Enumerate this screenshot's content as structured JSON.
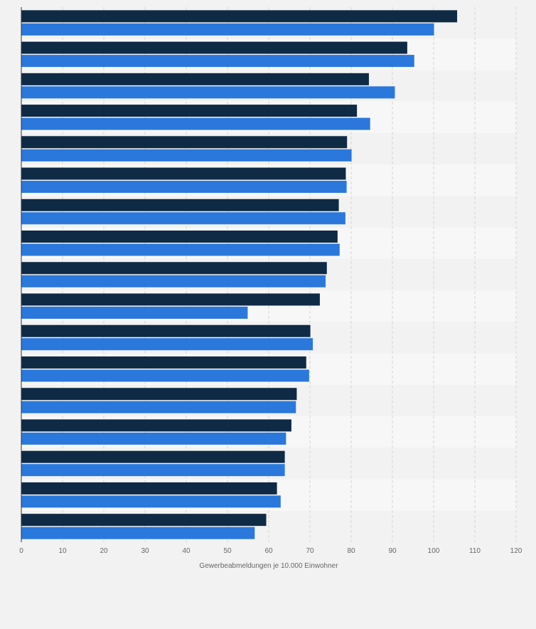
{
  "chart_data": {
    "type": "bar",
    "orientation": "horizontal",
    "xlabel": "Gewerbeabmeldungen je 10.000 Einwohner",
    "xlim": [
      0,
      120
    ],
    "x_ticks": [
      0,
      10,
      20,
      30,
      40,
      50,
      60,
      70,
      80,
      90,
      100,
      110,
      120
    ],
    "grid": true,
    "categories": [
      "",
      "",
      "",
      "",
      "",
      "",
      "",
      "",
      "",
      "",
      "",
      "",
      "",
      "",
      "",
      "",
      ""
    ],
    "series": [
      {
        "color": "#0f2a45",
        "values": [
          105.7,
          93.6,
          84.3,
          81.4,
          79.0,
          78.7,
          77.0,
          76.7,
          74.1,
          72.4,
          70.1,
          69.1,
          66.8,
          65.5,
          63.9,
          62.0,
          59.4
        ]
      },
      {
        "color": "#2a78dc",
        "values": [
          100.1,
          95.3,
          90.6,
          84.6,
          80.1,
          78.9,
          78.6,
          77.2,
          73.8,
          54.9,
          70.7,
          69.8,
          66.6,
          64.2,
          63.9,
          62.9,
          56.6
        ]
      }
    ]
  }
}
